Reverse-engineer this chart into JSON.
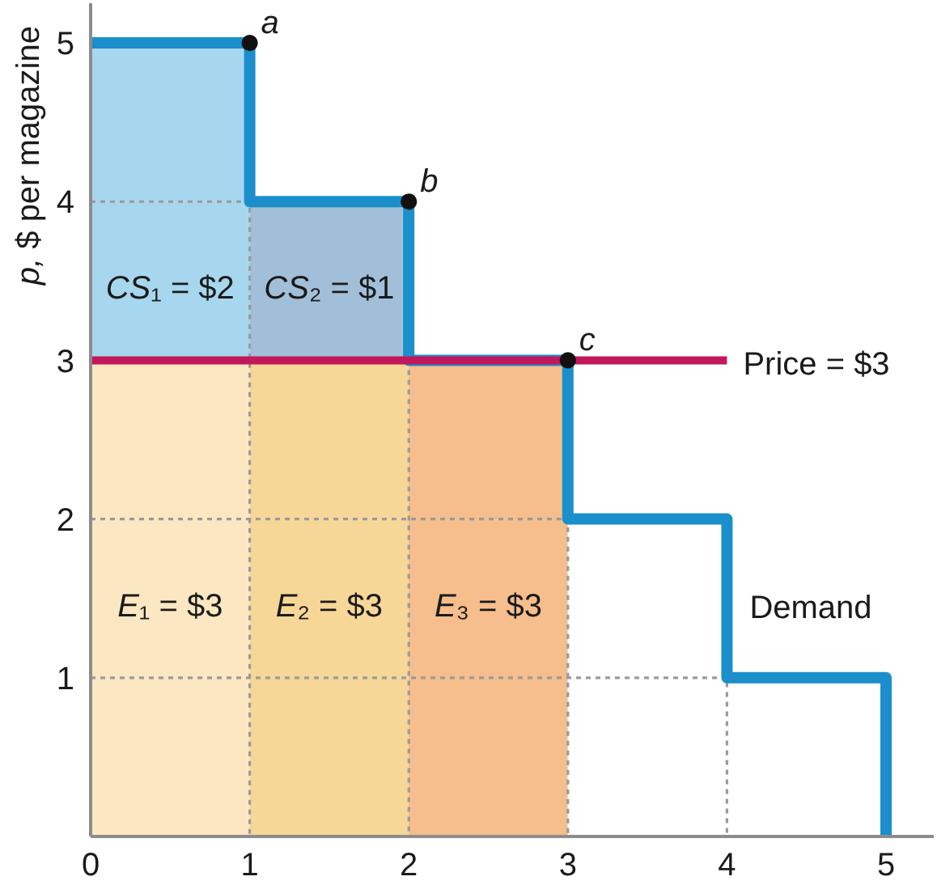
{
  "chart_data": {
    "type": "step",
    "ylabel": "p, $ per magazine",
    "xlim": [
      0,
      5.3
    ],
    "ylim": [
      0,
      5.25
    ],
    "xticks": [
      0,
      1,
      2,
      3,
      4,
      5
    ],
    "yticks": [
      1,
      2,
      3,
      4,
      5
    ],
    "stacked": true,
    "series": [
      {
        "type": "bar",
        "x": [
          0.5,
          1.5,
          2.5
        ],
        "values": [
          3,
          3,
          3
        ],
        "colors": [
          "#fbe7c2",
          "#f7d797",
          "#f5be8c"
        ],
        "value_labels": [
          "E₁ = $3",
          "E₂ = $3",
          "E₃ = $3"
        ]
      },
      {
        "type": "bar",
        "x": [
          0.5,
          1.5
        ],
        "values": [
          2,
          1
        ],
        "colors": [
          "#a7d7ee",
          "#a2bfd9"
        ],
        "value_labels": [
          "CS₁ = $2",
          "CS₂ = $1"
        ]
      },
      {
        "type": "line",
        "line_style": "dotted",
        "color": "#9a9a9a",
        "x": [
          0,
          1,
          1
        ],
        "values": [
          4,
          4,
          0
        ]
      },
      {
        "type": "line",
        "line_style": "dotted",
        "color": "#9a9a9a",
        "x": [
          2,
          2
        ],
        "values": [
          3,
          0
        ]
      },
      {
        "type": "line",
        "line_style": "dotted",
        "color": "#9a9a9a",
        "x": [
          0,
          3,
          3
        ],
        "values": [
          2,
          2,
          0
        ]
      },
      {
        "type": "line",
        "line_style": "dotted",
        "color": "#9a9a9a",
        "x": [
          0,
          4,
          4
        ],
        "values": [
          1,
          1,
          0
        ]
      },
      {
        "name": "Demand",
        "color": "#1a8fcc",
        "x": [
          0,
          1,
          2,
          3,
          4,
          5
        ],
        "values": [
          5,
          4,
          3,
          2,
          1,
          0
        ]
      },
      {
        "type": "line",
        "name": "Price = $3",
        "color": "#c2185b",
        "x": [
          0,
          4
        ],
        "values": [
          3,
          3
        ]
      },
      {
        "type": "scatter",
        "color": "#111111",
        "marker": "circle",
        "x": [
          1,
          2,
          3
        ],
        "values": [
          5,
          4,
          3
        ]
      }
    ],
    "annotations": [
      {
        "text": "a",
        "x": 1,
        "y": 5
      },
      {
        "text": "b",
        "x": 2,
        "y": 4
      },
      {
        "text": "c",
        "x": 3,
        "y": 3
      }
    ]
  }
}
